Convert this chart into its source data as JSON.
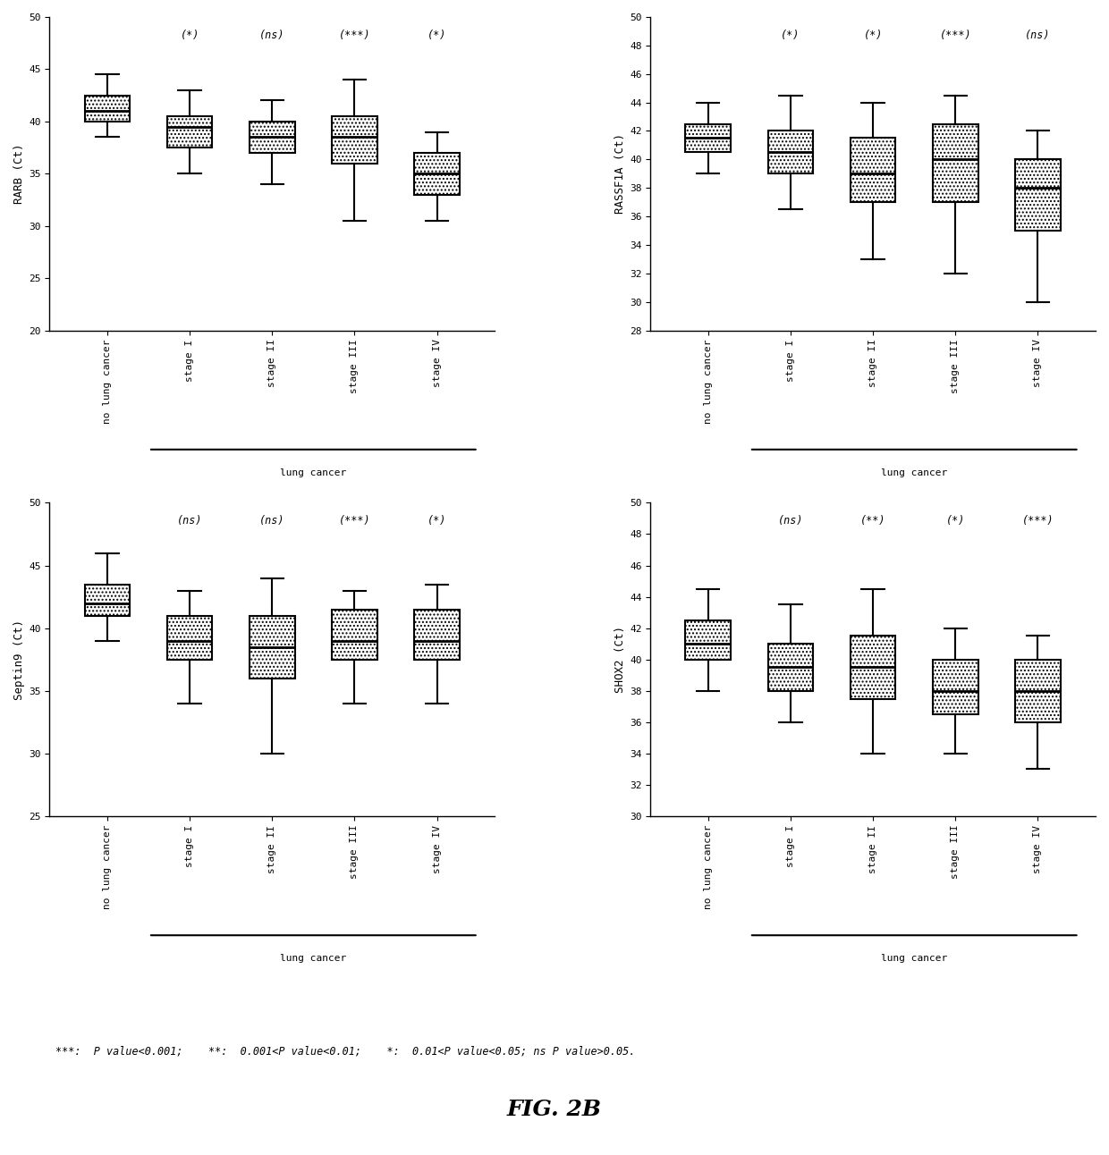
{
  "subplots": [
    {
      "ylabel": "RARB (Ct)",
      "ylim": [
        20,
        50
      ],
      "yticks": [
        20,
        25,
        30,
        35,
        40,
        45,
        50
      ],
      "significance": [
        "(*)",
        "(ns)",
        "(***)",
        "(*)"
      ],
      "boxes": [
        {
          "med": 41.0,
          "q1": 40.0,
          "q3": 42.5,
          "whislo": 38.5,
          "whishi": 44.5
        },
        {
          "med": 39.5,
          "q1": 37.5,
          "q3": 40.5,
          "whislo": 35.0,
          "whishi": 43.0
        },
        {
          "med": 38.5,
          "q1": 37.0,
          "q3": 40.0,
          "whislo": 34.0,
          "whishi": 42.0
        },
        {
          "med": 38.5,
          "q1": 36.0,
          "q3": 40.5,
          "whislo": 30.5,
          "whishi": 44.0
        },
        {
          "med": 35.0,
          "q1": 33.0,
          "q3": 37.0,
          "whislo": 30.5,
          "whishi": 39.0
        }
      ]
    },
    {
      "ylabel": "RASSF1A (Ct)",
      "ylim": [
        28,
        50
      ],
      "yticks": [
        28,
        30,
        32,
        34,
        36,
        38,
        40,
        42,
        44,
        46,
        48,
        50
      ],
      "significance": [
        "(*)",
        "(*)",
        "(***)",
        "(ns)"
      ],
      "boxes": [
        {
          "med": 41.5,
          "q1": 40.5,
          "q3": 42.5,
          "whislo": 39.0,
          "whishi": 44.0
        },
        {
          "med": 40.5,
          "q1": 39.0,
          "q3": 42.0,
          "whislo": 36.5,
          "whishi": 44.5
        },
        {
          "med": 39.0,
          "q1": 37.0,
          "q3": 41.5,
          "whislo": 33.0,
          "whishi": 44.0
        },
        {
          "med": 40.0,
          "q1": 37.0,
          "q3": 42.5,
          "whislo": 32.0,
          "whishi": 44.5
        },
        {
          "med": 38.0,
          "q1": 35.0,
          "q3": 40.0,
          "whislo": 30.0,
          "whishi": 42.0
        }
      ]
    },
    {
      "ylabel": "Septin9 (Ct)",
      "ylim": [
        25,
        50
      ],
      "yticks": [
        25,
        30,
        35,
        40,
        45,
        50
      ],
      "significance": [
        "(ns)",
        "(ns)",
        "(***)",
        "(*)"
      ],
      "boxes": [
        {
          "med": 42.0,
          "q1": 41.0,
          "q3": 43.5,
          "whislo": 39.0,
          "whishi": 46.0
        },
        {
          "med": 39.0,
          "q1": 37.5,
          "q3": 41.0,
          "whislo": 34.0,
          "whishi": 43.0
        },
        {
          "med": 38.5,
          "q1": 36.0,
          "q3": 41.0,
          "whislo": 30.0,
          "whishi": 44.0
        },
        {
          "med": 39.0,
          "q1": 37.5,
          "q3": 41.5,
          "whislo": 34.0,
          "whishi": 43.0
        },
        {
          "med": 39.0,
          "q1": 37.5,
          "q3": 41.5,
          "whislo": 34.0,
          "whishi": 43.5
        }
      ]
    },
    {
      "ylabel": "SHOX2 (Ct)",
      "ylim": [
        30,
        50
      ],
      "yticks": [
        30,
        32,
        34,
        36,
        38,
        40,
        42,
        44,
        46,
        48,
        50
      ],
      "significance": [
        "(ns)",
        "(**)",
        "(*)",
        "(***)"
      ],
      "boxes": [
        {
          "med": 41.0,
          "q1": 40.0,
          "q3": 42.5,
          "whislo": 38.0,
          "whishi": 44.5
        },
        {
          "med": 39.5,
          "q1": 38.0,
          "q3": 41.0,
          "whislo": 36.0,
          "whishi": 43.5
        },
        {
          "med": 39.5,
          "q1": 37.5,
          "q3": 41.5,
          "whislo": 34.0,
          "whishi": 44.5
        },
        {
          "med": 38.0,
          "q1": 36.5,
          "q3": 40.0,
          "whislo": 34.0,
          "whishi": 42.0
        },
        {
          "med": 38.0,
          "q1": 36.0,
          "q3": 40.0,
          "whislo": 33.0,
          "whishi": 41.5
        }
      ]
    }
  ],
  "groups": [
    "no lung cancer",
    "stage I",
    "stage II",
    "stage III",
    "stage IV"
  ],
  "lung_cancer_label": "lung cancer",
  "footnote": "***:  P value<0.001;    **:  0.001<P value<0.01;    *:  0.01<P value<0.05; ns P value>0.05.",
  "fig_label": "FIG. 2B",
  "background_color": "#ffffff"
}
